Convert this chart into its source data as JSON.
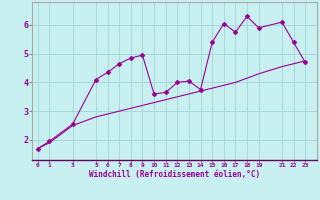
{
  "xlabel": "Windchill (Refroidissement éolien,°C)",
  "bg_color": "#c8f0f0",
  "grid_color": "#a8d8d8",
  "line_color": "#990099",
  "line1_x": [
    0,
    1,
    3,
    5,
    6,
    7,
    8,
    9,
    10,
    11,
    12,
    13,
    14,
    15,
    16,
    17,
    18,
    19,
    21,
    22,
    23
  ],
  "line1_y": [
    1.7,
    1.95,
    2.55,
    4.1,
    4.35,
    4.65,
    4.85,
    4.95,
    3.6,
    3.65,
    4.0,
    4.05,
    3.75,
    5.4,
    6.05,
    5.75,
    6.3,
    5.9,
    6.1,
    5.4,
    4.7
  ],
  "line2_x": [
    0,
    1,
    3,
    5,
    6,
    7,
    8,
    9,
    10,
    11,
    12,
    13,
    14,
    15,
    16,
    17,
    18,
    19,
    21,
    22,
    23
  ],
  "line2_y": [
    1.7,
    1.9,
    2.5,
    2.8,
    2.9,
    3.0,
    3.1,
    3.2,
    3.3,
    3.4,
    3.5,
    3.6,
    3.7,
    3.8,
    3.9,
    4.0,
    4.15,
    4.3,
    4.55,
    4.65,
    4.75
  ],
  "xlim": [
    -0.5,
    24.0
  ],
  "ylim": [
    1.3,
    6.8
  ],
  "yticks": [
    2,
    3,
    4,
    5,
    6
  ],
  "xticks": [
    0,
    1,
    3,
    5,
    6,
    7,
    8,
    9,
    10,
    11,
    12,
    13,
    14,
    15,
    16,
    17,
    18,
    19,
    21,
    22,
    23
  ],
  "xlabel_fontsize": 5.5,
  "tick_fontsize": 4.5,
  "ytick_fontsize": 6
}
